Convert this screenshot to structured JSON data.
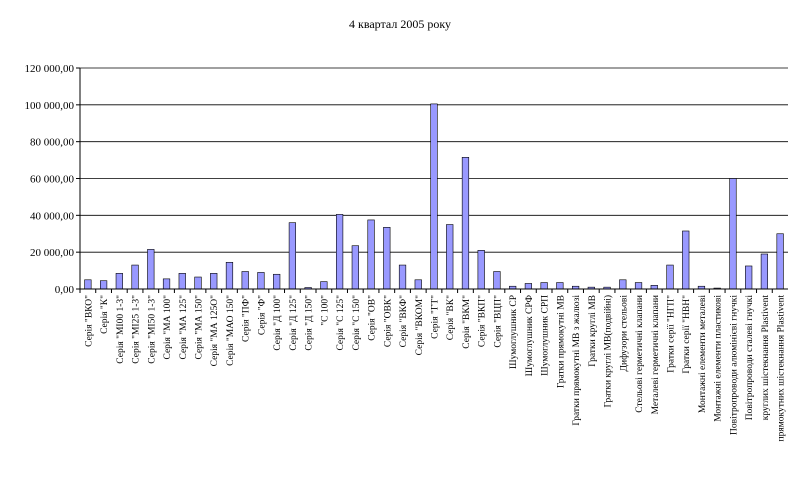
{
  "chart_data": {
    "type": "bar",
    "title": "4 квартал 2005 року",
    "categories": [
      "Серія \"ВКО\"",
      "Серія \"К\"",
      "Серія \"МІ00 1-3\"",
      "Серія \"МІ25 1-3\"",
      "Серія \"МІ50 1-3\"",
      "Серія \"МА 100\"",
      "Серія \"МА 125\"",
      "Серія \"МА 150\"",
      "Серія \"МА 125О\"",
      "Серія \"МАО 150\"",
      "Серія \"ПФ\"",
      "Серія \"Ф\"",
      "Серія \"Д 100\"",
      "Серія \"Д 125\"",
      "Серія \"Д 150\"",
      "\"С 100\"",
      "Серія \"С 125\"",
      "Серія \"С 150\"",
      "Серія \"ОВ\"",
      "Серія \"ОВК\"",
      "Серія \"ВКФ\"",
      "Серія \"ВКОМ\"",
      "Серія \"ГТ\"",
      "Серія \"ВК\"",
      "Серія \"ВКМ\"",
      "Серія \"ВКП\"",
      "Серія \"ВЦП\"",
      "Шумоглушник СР",
      "Шумоглушник СРФ",
      "Шумоглушник СРП",
      "Гратки прямокутні МВ",
      "Гратки прямокутні МВ з жалюзі",
      "Гратки круглі МВ",
      "Гратки круглі МВ(подвійні)",
      "Дифузори стельові",
      "Стельові герметичні клапани",
      "Металеві герметичні клапани",
      "Гратки серії \"НГП\"",
      "Гратки серії \"НВН\"",
      "Монтажні елементи металеві",
      "Монтажні елементи пластикові",
      "Повітропроводи алюмінієві гнучкі",
      "Повітропроводи сталеві гнучкі",
      "круглих шістекнання Plastivent",
      "прямокутних шістекнання Plastivent"
    ],
    "values": [
      5000,
      4500,
      8500,
      13000,
      21500,
      5500,
      8500,
      6500,
      8500,
      14500,
      9500,
      9000,
      8000,
      36000,
      800,
      4000,
      40500,
      23500,
      37500,
      33500,
      13000,
      5000,
      100500,
      35000,
      71500,
      21000,
      9500,
      1500,
      3000,
      3500,
      3500,
      1500,
      1000,
      1000,
      5000,
      3500,
      2000,
      13000,
      31500,
      1500,
      500,
      60000,
      12500,
      19000,
      30000
    ],
    "yticks": [
      "0,00",
      "20 000,00",
      "40 000,00",
      "60 000,00",
      "80 000,00",
      "100 000,00",
      "120 000,00"
    ],
    "ylim": [
      0,
      120000
    ],
    "grid": true,
    "legend": "none",
    "colors": {
      "bar": "#9999ff",
      "bar_border": "#000000",
      "grid": "#000000"
    }
  }
}
